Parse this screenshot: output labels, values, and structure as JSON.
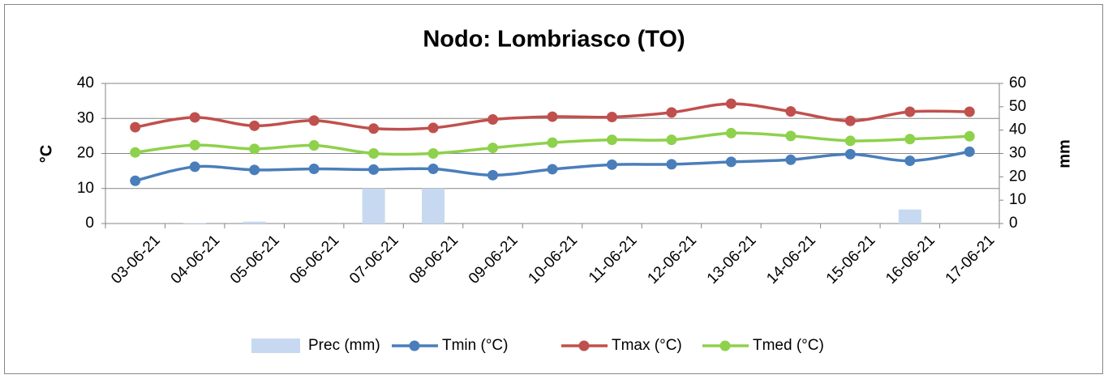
{
  "chart_data": {
    "type": "line",
    "title": "Nodo: Lombriasco (TO)",
    "y_label": "°C",
    "y2_label": "mm",
    "categories": [
      "03-06-21",
      "04-06-21",
      "05-06-21",
      "06-06-21",
      "07-06-21",
      "08-06-21",
      "09-06-21",
      "10-06-21",
      "11-06-21",
      "12-06-21",
      "13-06-21",
      "14-06-21",
      "15-06-21",
      "16-06-21",
      "17-06-21"
    ],
    "series": [
      {
        "name": "Prec (mm)",
        "type": "bar",
        "axis": "y2",
        "color": "#c6d9f1",
        "values": [
          0,
          0.2,
          0.8,
          0,
          15,
          15,
          0,
          0,
          0,
          0,
          0,
          0,
          0,
          6,
          0
        ]
      },
      {
        "name": "Tmin (°C)",
        "type": "line",
        "color": "#4a7ebb",
        "values": [
          12.2,
          16.2,
          15.3,
          15.6,
          15.4,
          15.6,
          13.8,
          15.5,
          16.8,
          16.9,
          17.6,
          18.2,
          19.8,
          17.9,
          20.5
        ]
      },
      {
        "name": "Tmax (°C)",
        "type": "line",
        "color": "#c0504d",
        "values": [
          27.5,
          30.3,
          27.9,
          29.4,
          27.1,
          27.3,
          29.7,
          30.5,
          30.4,
          31.7,
          34.2,
          32.0,
          29.3,
          31.9,
          31.9
        ]
      },
      {
        "name": "Tmed (°C)",
        "type": "line",
        "color": "#8ed14b",
        "values": [
          20.3,
          22.4,
          21.3,
          22.3,
          20.0,
          20.0,
          21.6,
          23.1,
          23.9,
          23.9,
          25.8,
          25.0,
          23.6,
          24.1,
          24.9
        ]
      }
    ],
    "ylim": [
      0,
      40
    ],
    "yticks": [
      0,
      10,
      20,
      30,
      40
    ],
    "y2lim": [
      0,
      60
    ],
    "y2ticks": [
      0,
      10,
      20,
      30,
      40,
      50,
      60
    ],
    "grid": true,
    "legend": "bottom"
  }
}
